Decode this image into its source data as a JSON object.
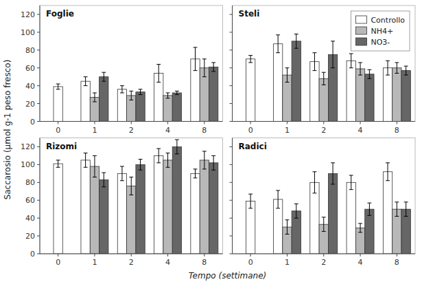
{
  "chart_data": [
    {
      "type": "bar",
      "title": "Foglie",
      "categories": [
        "0",
        "1",
        "2",
        "4",
        "8"
      ],
      "series": [
        {
          "name": "Controllo",
          "color": "#ffffff",
          "values": [
            39,
            45,
            36,
            54,
            70
          ],
          "errors": [
            3,
            5,
            4,
            10,
            13
          ]
        },
        {
          "name": "NH4+",
          "color": "#b8b8b8",
          "values": [
            null,
            27,
            29,
            29,
            60
          ],
          "errors": [
            null,
            5,
            5,
            3,
            10
          ]
        },
        {
          "name": "NO3-",
          "color": "#666666",
          "values": [
            null,
            50,
            33,
            32,
            61
          ],
          "errors": [
            null,
            5,
            3,
            2,
            5
          ]
        }
      ],
      "ylim": [
        0,
        130
      ],
      "yticks": [
        0,
        20,
        40,
        60,
        80,
        100,
        120
      ],
      "ylabel": "Saccarosio (μmol g-1 peso fresco)",
      "grid": false
    },
    {
      "type": "bar",
      "title": "Steli",
      "categories": [
        "0",
        "1",
        "2",
        "4",
        "8"
      ],
      "series": [
        {
          "name": "Controllo",
          "color": "#ffffff",
          "values": [
            70,
            87,
            67,
            68,
            60
          ],
          "errors": [
            4,
            10,
            10,
            8,
            8
          ]
        },
        {
          "name": "NH4+",
          "color": "#b8b8b8",
          "values": [
            null,
            52,
            48,
            59,
            60
          ],
          "errors": [
            null,
            8,
            7,
            7,
            6
          ]
        },
        {
          "name": "NO3-",
          "color": "#666666",
          "values": [
            null,
            90,
            75,
            53,
            57
          ],
          "errors": [
            null,
            8,
            15,
            5,
            5
          ]
        }
      ],
      "ylim": [
        0,
        130
      ],
      "yticks": [
        0,
        20,
        40,
        60,
        80,
        100,
        120
      ],
      "grid": false,
      "legend": "upper right",
      "tick_labels": "x"
    },
    {
      "type": "bar",
      "title": "Rizomi",
      "categories": [
        "0",
        "1",
        "2",
        "4",
        "8"
      ],
      "series": [
        {
          "name": "Controllo",
          "color": "#ffffff",
          "values": [
            101,
            105,
            90,
            110,
            90
          ],
          "errors": [
            4,
            8,
            8,
            8,
            5
          ]
        },
        {
          "name": "NH4+",
          "color": "#b8b8b8",
          "values": [
            null,
            98,
            76,
            105,
            105
          ],
          "errors": [
            null,
            12,
            10,
            8,
            10
          ]
        },
        {
          "name": "NO3-",
          "color": "#666666",
          "values": [
            null,
            83,
            100,
            120,
            102
          ],
          "errors": [
            null,
            8,
            6,
            8,
            8
          ]
        }
      ],
      "ylim": [
        0,
        130
      ],
      "yticks": [
        0,
        20,
        40,
        60,
        80,
        100,
        120
      ],
      "xlabel": "Tempo (settimane)",
      "grid": false
    },
    {
      "type": "bar",
      "title": "Radici",
      "categories": [
        "0",
        "1",
        "2",
        "4",
        "8"
      ],
      "series": [
        {
          "name": "Controllo",
          "color": "#ffffff",
          "values": [
            59,
            61,
            80,
            80,
            92
          ],
          "errors": [
            8,
            10,
            12,
            8,
            10
          ]
        },
        {
          "name": "NH4+",
          "color": "#b8b8b8",
          "values": [
            null,
            30,
            33,
            29,
            50
          ],
          "errors": [
            null,
            8,
            8,
            5,
            8
          ]
        },
        {
          "name": "NO3-",
          "color": "#666666",
          "values": [
            null,
            48,
            90,
            50,
            50
          ],
          "errors": [
            null,
            8,
            12,
            7,
            8
          ]
        }
      ],
      "ylim": [
        0,
        130
      ],
      "yticks": [
        0,
        20,
        40,
        60,
        80,
        100,
        120
      ],
      "grid": false,
      "tick_labels": "x"
    }
  ]
}
